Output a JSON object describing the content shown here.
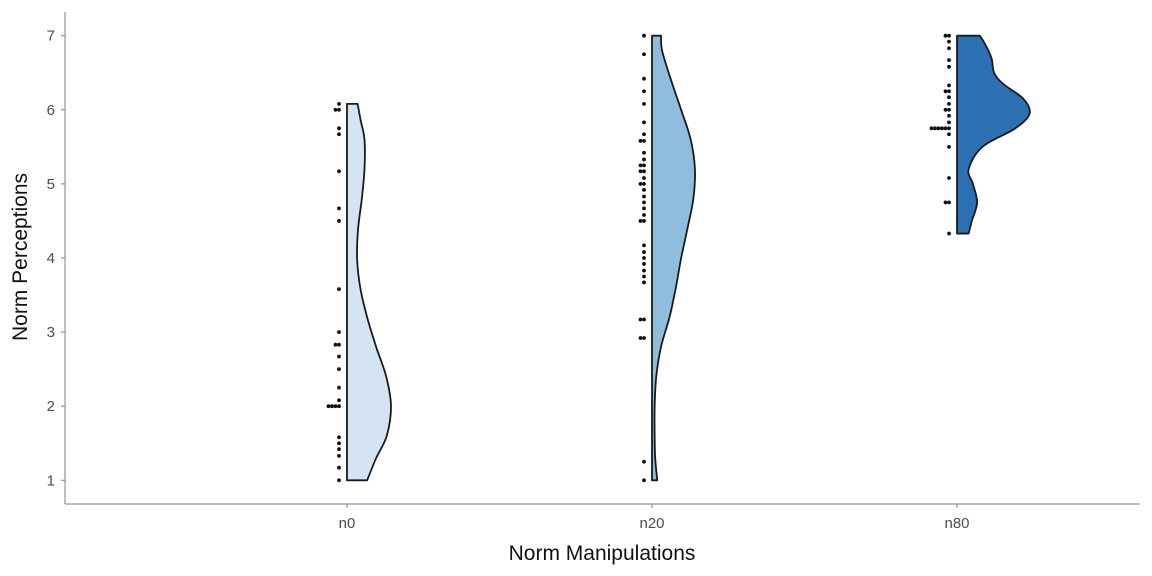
{
  "chart_data": {
    "type": "raincloud",
    "xlabel": "Norm Manipulations",
    "ylabel": "Norm Perceptions",
    "ylim": [
      0.68,
      7.32
    ],
    "yticks": [
      1,
      2,
      3,
      4,
      5,
      6,
      7
    ],
    "grid": false,
    "legend": "none",
    "categories": [
      "n0",
      "n20",
      "n80"
    ],
    "groups": [
      {
        "name": "n0",
        "fill": "#d5e4f3",
        "range": [
          1.0,
          6.08
        ],
        "density": [
          [
            1.0,
            0.38
          ],
          [
            1.3,
            0.55
          ],
          [
            1.6,
            0.75
          ],
          [
            2.0,
            0.83
          ],
          [
            2.4,
            0.74
          ],
          [
            2.8,
            0.55
          ],
          [
            3.2,
            0.38
          ],
          [
            3.6,
            0.25
          ],
          [
            4.0,
            0.19
          ],
          [
            4.4,
            0.21
          ],
          [
            4.8,
            0.28
          ],
          [
            5.2,
            0.33
          ],
          [
            5.6,
            0.33
          ],
          [
            5.85,
            0.26
          ],
          [
            6.08,
            0.2
          ]
        ],
        "points": [
          1.0,
          1.17,
          1.33,
          1.42,
          1.5,
          1.58,
          2.0,
          2.0,
          2.0,
          2.0,
          2.08,
          2.25,
          2.5,
          2.67,
          2.83,
          2.83,
          3.0,
          3.58,
          4.5,
          4.67,
          5.17,
          5.67,
          5.75,
          6.0,
          6.0,
          6.08
        ]
      },
      {
        "name": "n20",
        "fill": "#8fbddb",
        "range": [
          1.0,
          7.0
        ],
        "density": [
          [
            1.0,
            0.1
          ],
          [
            1.3,
            0.06
          ],
          [
            1.6,
            0.05
          ],
          [
            2.0,
            0.05
          ],
          [
            2.4,
            0.08
          ],
          [
            2.8,
            0.17
          ],
          [
            3.2,
            0.33
          ],
          [
            3.6,
            0.45
          ],
          [
            4.0,
            0.55
          ],
          [
            4.4,
            0.67
          ],
          [
            4.8,
            0.78
          ],
          [
            5.2,
            0.81
          ],
          [
            5.6,
            0.73
          ],
          [
            6.0,
            0.55
          ],
          [
            6.4,
            0.36
          ],
          [
            6.8,
            0.19
          ],
          [
            7.0,
            0.17
          ]
        ],
        "points": [
          1.0,
          1.25,
          2.92,
          2.92,
          3.17,
          3.17,
          3.67,
          3.75,
          3.83,
          3.92,
          4.0,
          4.08,
          4.17,
          4.5,
          4.5,
          4.58,
          4.67,
          4.75,
          4.83,
          4.92,
          5.0,
          5.0,
          5.08,
          5.17,
          5.17,
          5.25,
          5.25,
          5.33,
          5.42,
          5.58,
          5.58,
          5.67,
          5.83,
          6.08,
          6.25,
          6.42,
          6.75,
          7.0
        ]
      },
      {
        "name": "n80",
        "fill": "#2a70b3",
        "range": [
          4.33,
          7.0
        ],
        "density": [
          [
            4.33,
            0.22
          ],
          [
            4.5,
            0.28
          ],
          [
            4.75,
            0.38
          ],
          [
            5.0,
            0.3
          ],
          [
            5.2,
            0.22
          ],
          [
            5.5,
            0.48
          ],
          [
            5.75,
            1.1
          ],
          [
            5.95,
            1.37
          ],
          [
            6.15,
            1.25
          ],
          [
            6.35,
            0.87
          ],
          [
            6.5,
            0.7
          ],
          [
            6.7,
            0.65
          ],
          [
            6.9,
            0.52
          ],
          [
            7.0,
            0.43
          ]
        ],
        "points": [
          4.33,
          4.75,
          4.75,
          5.08,
          5.5,
          5.67,
          5.75,
          5.75,
          5.75,
          5.75,
          5.75,
          5.75,
          5.83,
          5.92,
          6.0,
          6.0,
          6.08,
          6.17,
          6.25,
          6.25,
          6.33,
          6.58,
          6.67,
          6.83,
          6.92,
          7.0,
          7.0
        ]
      }
    ]
  }
}
